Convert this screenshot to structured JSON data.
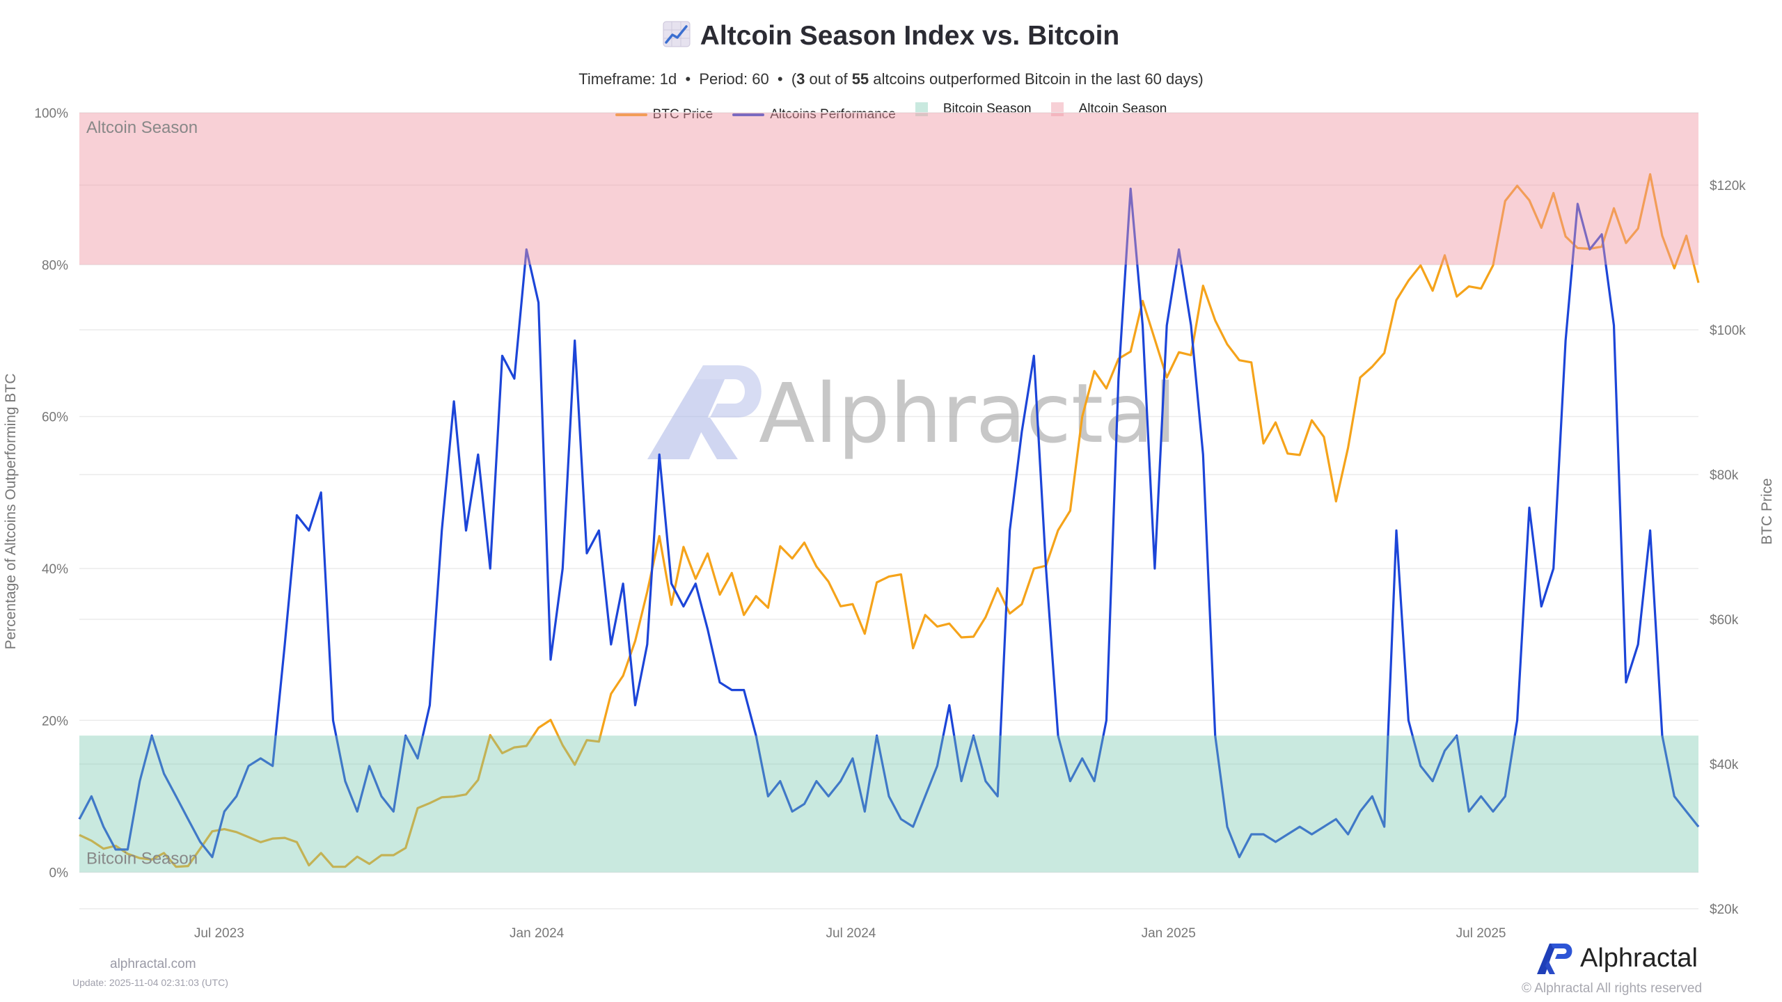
{
  "header": {
    "title_icon": "chart-increasing-icon",
    "title": "Altcoin Season Index vs. Bitcoin",
    "subtitle_pre": "Timeframe: 1d  •  Period: 60  •  (",
    "subtitle_count": "3",
    "subtitle_mid": " out of ",
    "subtitle_total": "55",
    "subtitle_post": " altcoins outperformed Bitcoin in the last 60 days)"
  },
  "legend": [
    {
      "label": "BTC Price",
      "kind": "line",
      "color": "#f5a31a"
    },
    {
      "label": "Altcoins Performance",
      "kind": "line",
      "color": "#1c45d8"
    },
    {
      "label": "Bitcoin Season",
      "kind": "band",
      "color": "#c9e9df"
    },
    {
      "label": "Altcoin Season",
      "kind": "band",
      "color": "#f7d0d6"
    }
  ],
  "chart_data": {
    "type": "line",
    "title": "Altcoin Season Index vs. Bitcoin",
    "ylabel_left": "Percentage of Altcoins Outperforming BTC",
    "ylabel_right": "BTC Price",
    "ylim_left": [
      -4.8,
      100
    ],
    "ylim_right": [
      20000,
      130000
    ],
    "grid": true,
    "legend_placement": "top-center",
    "yticks_left": [
      {
        "value": 100,
        "label": "100%"
      },
      {
        "value": 80,
        "label": "80%"
      },
      {
        "value": 60,
        "label": "60%"
      },
      {
        "value": 40,
        "label": "40%"
      },
      {
        "value": 20,
        "label": "20%"
      },
      {
        "value": 0,
        "label": "0%"
      }
    ],
    "yticks_right": [
      {
        "value": 120000,
        "label": "$120k"
      },
      {
        "value": 100000,
        "label": "$100k"
      },
      {
        "value": 80000,
        "label": "$80k"
      },
      {
        "value": 60000,
        "label": "$60k"
      },
      {
        "value": 40000,
        "label": "$40k"
      },
      {
        "value": 20000,
        "label": "$20k"
      }
    ],
    "xticks": [
      {
        "date": "2023-07-01",
        "label": "Jul 2023"
      },
      {
        "date": "2024-01-01",
        "label": "Jan 2024"
      },
      {
        "date": "2024-07-01",
        "label": "Jul 2024"
      },
      {
        "date": "2025-01-01",
        "label": "Jan 2025"
      },
      {
        "date": "2025-07-01",
        "label": "Jul 2025"
      }
    ],
    "bands": [
      {
        "name": "Altcoin Season",
        "range": [
          80,
          100
        ],
        "color": "#f7d0d6"
      },
      {
        "name": "Bitcoin Season",
        "range": [
          0,
          18
        ],
        "color": "#c9e9df"
      }
    ],
    "x": [
      "2023-04-11",
      "2023-04-18",
      "2023-04-25",
      "2023-05-02",
      "2023-05-09",
      "2023-05-16",
      "2023-05-23",
      "2023-05-30",
      "2023-06-06",
      "2023-06-13",
      "2023-06-20",
      "2023-06-27",
      "2023-07-04",
      "2023-07-11",
      "2023-07-18",
      "2023-07-25",
      "2023-08-01",
      "2023-08-08",
      "2023-08-15",
      "2023-08-22",
      "2023-08-29",
      "2023-09-05",
      "2023-09-12",
      "2023-09-19",
      "2023-09-26",
      "2023-10-03",
      "2023-10-10",
      "2023-10-17",
      "2023-10-24",
      "2023-10-31",
      "2023-11-07",
      "2023-11-14",
      "2023-11-21",
      "2023-11-28",
      "2023-12-05",
      "2023-12-12",
      "2023-12-19",
      "2023-12-26",
      "2024-01-02",
      "2024-01-09",
      "2024-01-16",
      "2024-01-23",
      "2024-01-30",
      "2024-02-06",
      "2024-02-13",
      "2024-02-20",
      "2024-02-27",
      "2024-03-05",
      "2024-03-12",
      "2024-03-19",
      "2024-03-26",
      "2024-04-02",
      "2024-04-09",
      "2024-04-16",
      "2024-04-23",
      "2024-04-30",
      "2024-05-07",
      "2024-05-14",
      "2024-05-21",
      "2024-05-28",
      "2024-06-04",
      "2024-06-11",
      "2024-06-18",
      "2024-06-25",
      "2024-07-02",
      "2024-07-09",
      "2024-07-16",
      "2024-07-23",
      "2024-07-30",
      "2024-08-06",
      "2024-08-13",
      "2024-08-20",
      "2024-08-27",
      "2024-09-03",
      "2024-09-10",
      "2024-09-17",
      "2024-09-24",
      "2024-10-01",
      "2024-10-08",
      "2024-10-15",
      "2024-10-22",
      "2024-10-29",
      "2024-11-05",
      "2024-11-12",
      "2024-11-19",
      "2024-11-26",
      "2024-12-03",
      "2024-12-10",
      "2024-12-17",
      "2024-12-24",
      "2024-12-31",
      "2025-01-07",
      "2025-01-14",
      "2025-01-21",
      "2025-01-28",
      "2025-02-04",
      "2025-02-11",
      "2025-02-18",
      "2025-02-25",
      "2025-03-04",
      "2025-03-11",
      "2025-03-18",
      "2025-03-25",
      "2025-04-01",
      "2025-04-08",
      "2025-04-15",
      "2025-04-22",
      "2025-04-29",
      "2025-05-06",
      "2025-05-13",
      "2025-05-20",
      "2025-05-27",
      "2025-06-03",
      "2025-06-10",
      "2025-06-17",
      "2025-06-24",
      "2025-07-01",
      "2025-07-08",
      "2025-07-15",
      "2025-07-22",
      "2025-07-29",
      "2025-08-05",
      "2025-08-12",
      "2025-08-19",
      "2025-08-26",
      "2025-09-02",
      "2025-09-09",
      "2025-09-16",
      "2025-09-23",
      "2025-09-30",
      "2025-10-07",
      "2025-10-14",
      "2025-10-21",
      "2025-10-28",
      "2025-11-04"
    ],
    "series": [
      {
        "name": "BTC Price",
        "axis": "right",
        "color": "#f5a31a",
        "values": [
          30200,
          29400,
          28300,
          28700,
          27600,
          27000,
          26800,
          27700,
          25800,
          25900,
          28300,
          30700,
          31000,
          30600,
          29900,
          29200,
          29700,
          29800,
          29200,
          26000,
          27700,
          25800,
          25800,
          27200,
          26200,
          27400,
          27400,
          28400,
          33900,
          34600,
          35400,
          35500,
          35800,
          37800,
          44000,
          41500,
          42300,
          42500,
          45000,
          46100,
          42600,
          39900,
          43300,
          43100,
          49700,
          52200,
          57000,
          63800,
          71500,
          62000,
          70000,
          65600,
          69100,
          63400,
          66400,
          60600,
          63200,
          61600,
          70100,
          68400,
          70600,
          67300,
          65200,
          61800,
          62100,
          58000,
          65100,
          65900,
          66200,
          56000,
          60600,
          59000,
          59400,
          57500,
          57600,
          60300,
          64300,
          60800,
          62100,
          67000,
          67400,
          72300,
          75000,
          88000,
          94300,
          91900,
          96000,
          97000,
          104000,
          98700,
          93400,
          96900,
          96500,
          106100,
          101300,
          98000,
          95800,
          95500,
          84300,
          87200,
          82900,
          82700,
          87500,
          85200,
          76300,
          83700,
          93400,
          94900,
          96800,
          104100,
          106800,
          108900,
          105400,
          110300,
          104600,
          106000,
          105700,
          108900,
          117800,
          119900,
          117900,
          114100,
          118900,
          112900,
          111300,
          111200,
          111500,
          116800,
          112000,
          114000,
          121500,
          113000,
          108500,
          113000,
          106500
        ]
      },
      {
        "name": "Altcoins Performance",
        "axis": "left",
        "color": "#1c45d8",
        "values": [
          7,
          10,
          6,
          3,
          3,
          12,
          18,
          13,
          10,
          7,
          4,
          2,
          8,
          10,
          14,
          15,
          14,
          30,
          47,
          45,
          50,
          20,
          12,
          8,
          14,
          10,
          8,
          18,
          15,
          22,
          45,
          62,
          45,
          55,
          40,
          68,
          65,
          82,
          75,
          28,
          40,
          70,
          42,
          45,
          30,
          38,
          22,
          30,
          55,
          38,
          35,
          38,
          32,
          25,
          24,
          24,
          18,
          10,
          12,
          8,
          9,
          12,
          10,
          12,
          15,
          8,
          18,
          10,
          7,
          6,
          10,
          14,
          22,
          12,
          18,
          12,
          10,
          45,
          58,
          68,
          40,
          18,
          12,
          15,
          12,
          20,
          65,
          90,
          72,
          40,
          72,
          82,
          72,
          55,
          18,
          6,
          2,
          5,
          5,
          4,
          5,
          6,
          5,
          6,
          7,
          5,
          8,
          10,
          6,
          45,
          20,
          14,
          12,
          16,
          18,
          8,
          10,
          8,
          10,
          20,
          48,
          35,
          40,
          70,
          88,
          82,
          84,
          72,
          25,
          30,
          45,
          18,
          10,
          8,
          6
        ]
      }
    ]
  },
  "watermark": {
    "text": "Alphractal"
  },
  "footer": {
    "site": "alphractal.com",
    "update": "Update: 2025-11-04 02:31:03 (UTC)",
    "brand": "Alphractal",
    "copyright": "© Alphractal All rights reserved"
  }
}
